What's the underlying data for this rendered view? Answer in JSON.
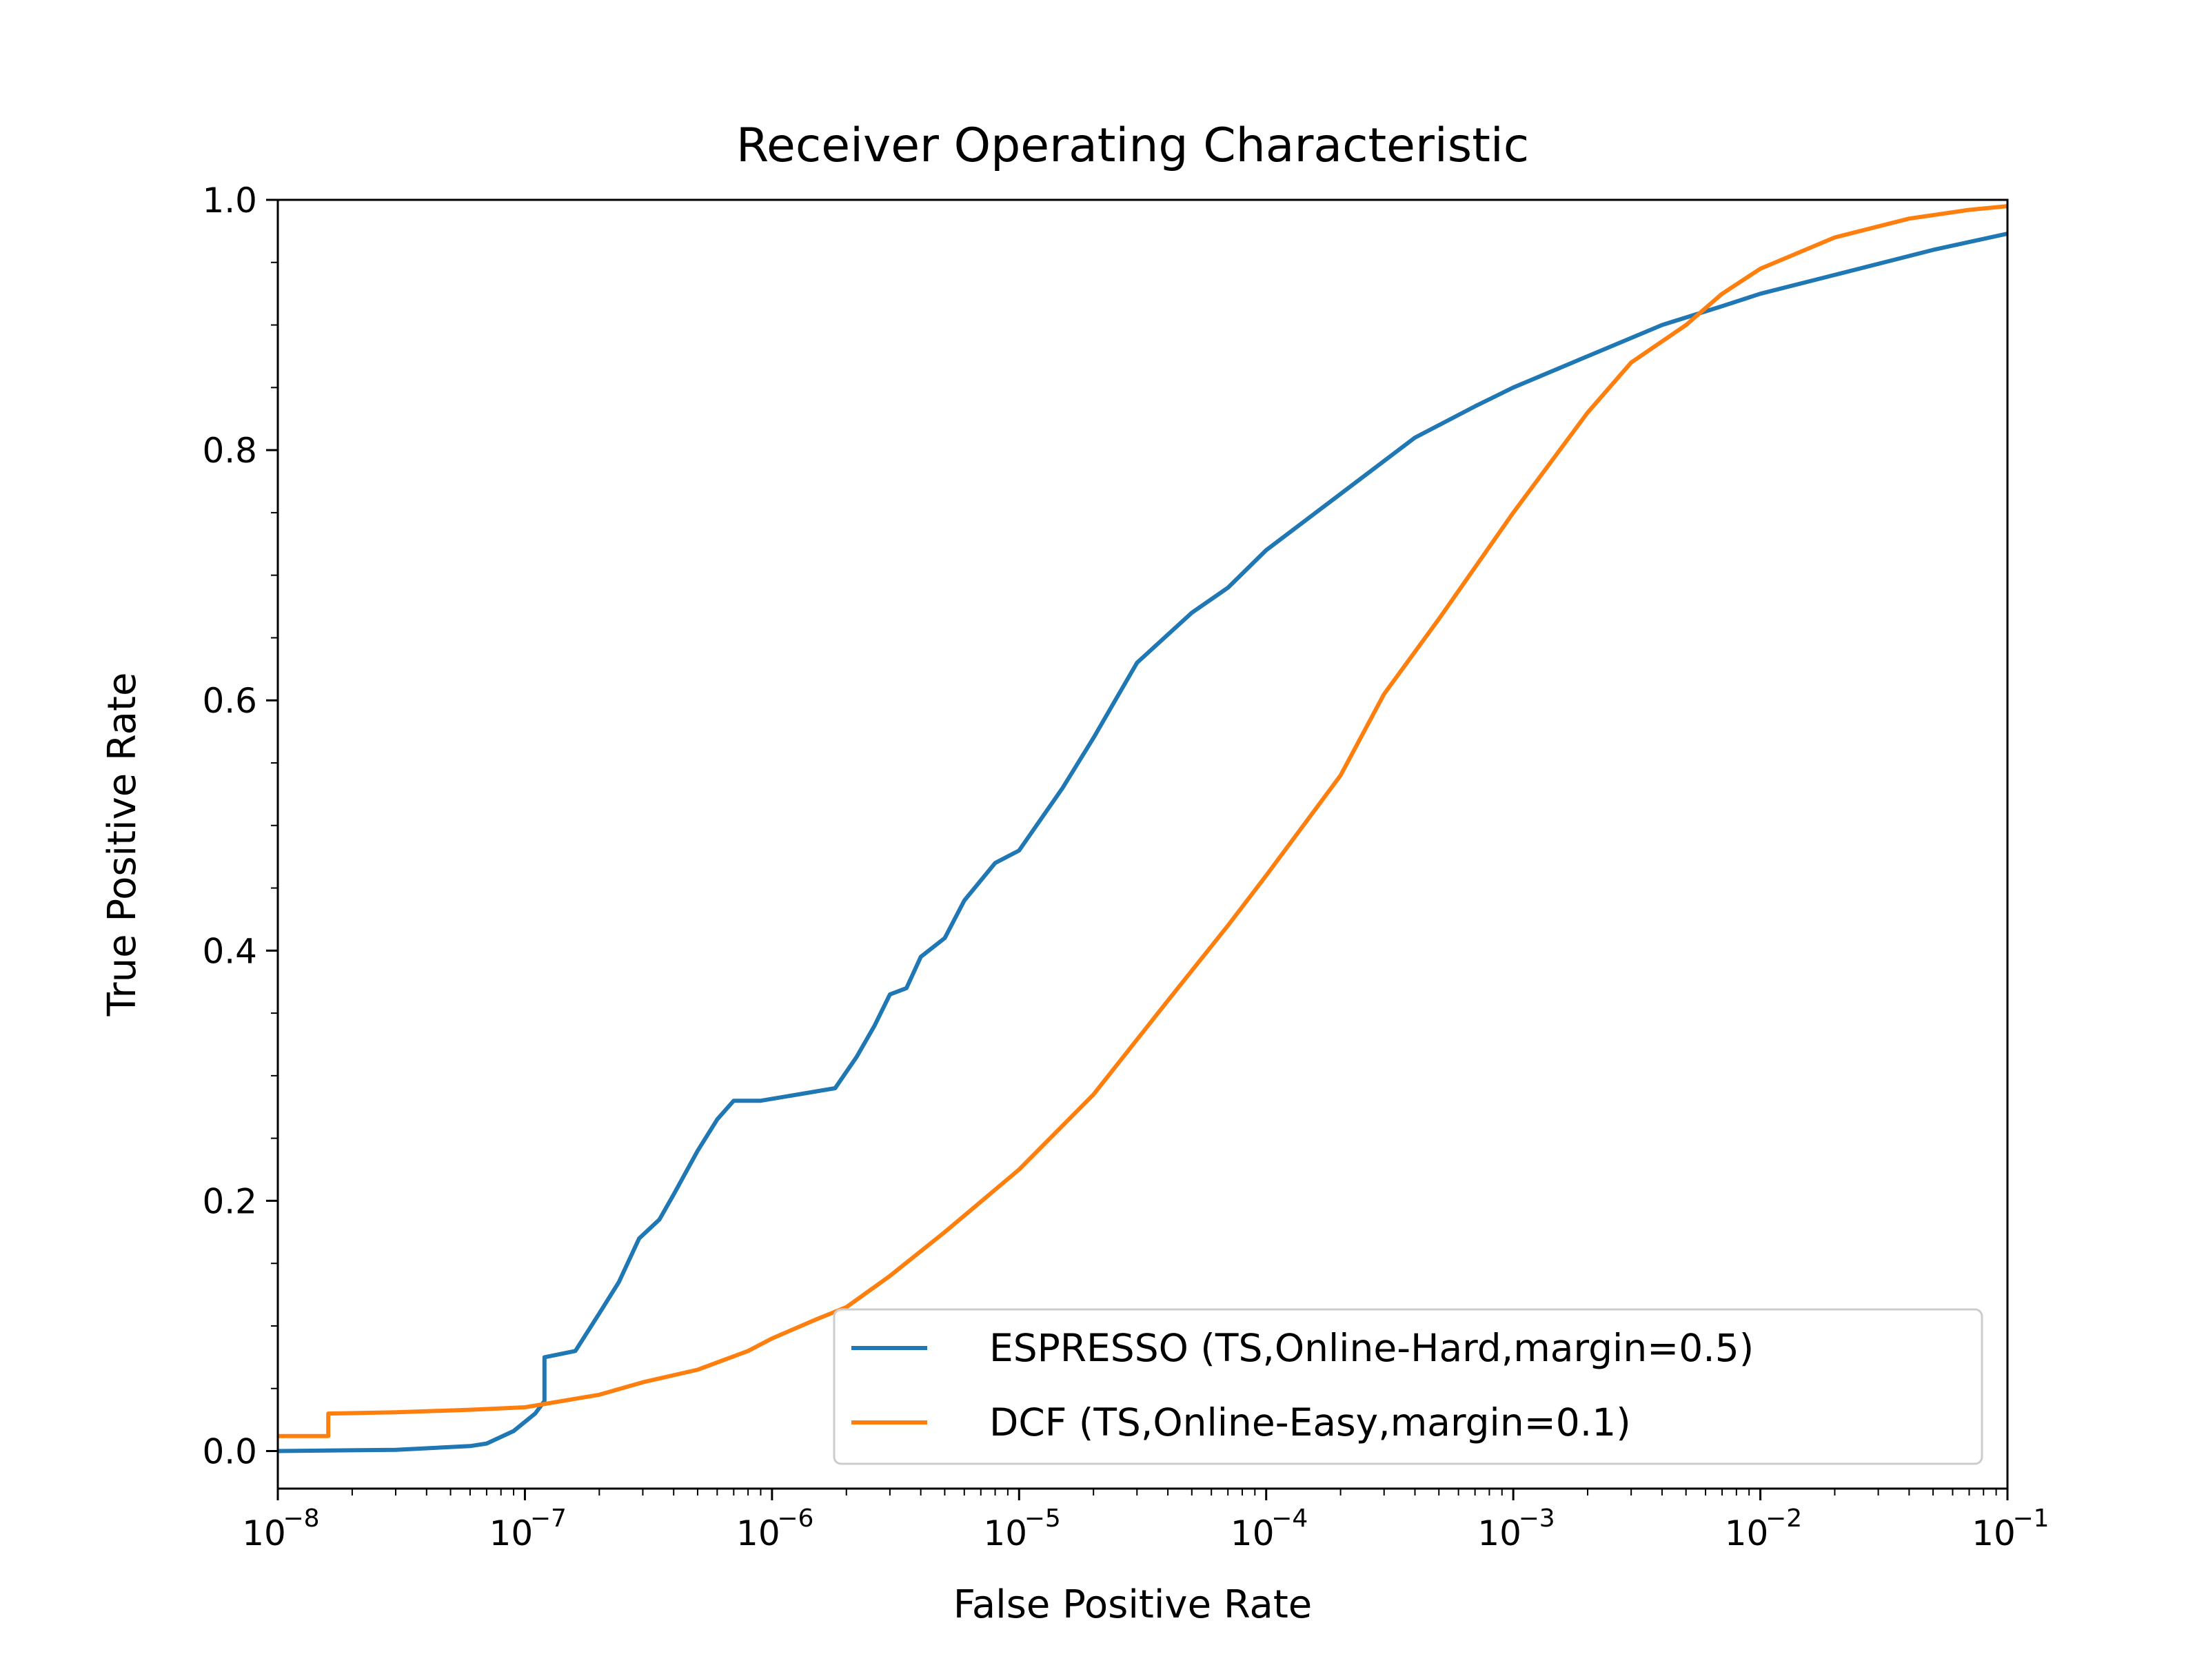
{
  "chart_data": {
    "type": "line",
    "title": "Receiver Operating Characteristic",
    "xlabel": "False Positive Rate",
    "ylabel": "True Positive Rate",
    "xscale": "log",
    "xlim": [
      1e-08,
      0.1
    ],
    "ylim": [
      -0.03,
      1.0
    ],
    "x_ticks": [
      {
        "base": "10",
        "exp": "−8"
      },
      {
        "base": "10",
        "exp": "−7"
      },
      {
        "base": "10",
        "exp": "−6"
      },
      {
        "base": "10",
        "exp": "−5"
      },
      {
        "base": "10",
        "exp": "−4"
      },
      {
        "base": "10",
        "exp": "−3"
      },
      {
        "base": "10",
        "exp": "−2"
      },
      {
        "base": "10",
        "exp": "−1"
      }
    ],
    "y_ticks": [
      "0.0",
      "0.2",
      "0.4",
      "0.6",
      "0.8",
      "1.0"
    ],
    "grid": false,
    "legend_position": "lower-right",
    "series": [
      {
        "name": "ESPRESSO (TS,Online-Hard,margin=0.5)",
        "color": "#1f77b4",
        "x": [
          1e-08,
          3e-08,
          6e-08,
          7e-08,
          9e-08,
          1.1e-07,
          1.2e-07,
          1.2e-07,
          1.6e-07,
          2e-07,
          2.4e-07,
          2.9e-07,
          3.5e-07,
          4e-07,
          5e-07,
          6e-07,
          7e-07,
          8e-07,
          9e-07,
          1.8e-06,
          2.2e-06,
          2.6e-06,
          3e-06,
          3.5e-06,
          4e-06,
          5e-06,
          6e-06,
          8e-06,
          1e-05,
          1.5e-05,
          2e-05,
          3e-05,
          5e-05,
          7e-05,
          0.0001,
          0.0002,
          0.0004,
          0.0007,
          0.001,
          0.002,
          0.004,
          0.007,
          0.01,
          0.02,
          0.05,
          0.1
        ],
        "y": [
          0.0,
          0.001,
          0.004,
          0.006,
          0.016,
          0.03,
          0.04,
          0.075,
          0.08,
          0.11,
          0.135,
          0.17,
          0.185,
          0.205,
          0.24,
          0.265,
          0.28,
          0.28,
          0.28,
          0.29,
          0.315,
          0.34,
          0.365,
          0.37,
          0.395,
          0.41,
          0.44,
          0.47,
          0.48,
          0.53,
          0.57,
          0.63,
          0.67,
          0.69,
          0.72,
          0.765,
          0.81,
          0.835,
          0.85,
          0.875,
          0.9,
          0.915,
          0.925,
          0.94,
          0.96,
          0.973
        ]
      },
      {
        "name": "DCF (TS,Online-Easy,margin=0.1)",
        "color": "#ff7f0e",
        "x": [
          1e-08,
          1.6e-08,
          1.6e-08,
          3e-08,
          6e-08,
          1e-07,
          2e-07,
          3e-07,
          5e-07,
          8e-07,
          1e-06,
          1.5e-06,
          2e-06,
          3e-06,
          5e-06,
          1e-05,
          2e-05,
          4e-05,
          7e-05,
          0.0001,
          0.0002,
          0.0003,
          0.0005,
          0.001,
          0.002,
          0.003,
          0.005,
          0.007,
          0.01,
          0.02,
          0.04,
          0.07,
          0.1
        ],
        "y": [
          0.012,
          0.012,
          0.03,
          0.031,
          0.033,
          0.035,
          0.045,
          0.055,
          0.065,
          0.08,
          0.09,
          0.105,
          0.115,
          0.14,
          0.175,
          0.225,
          0.285,
          0.36,
          0.42,
          0.46,
          0.54,
          0.605,
          0.665,
          0.75,
          0.83,
          0.87,
          0.9,
          0.925,
          0.945,
          0.97,
          0.985,
          0.992,
          0.995
        ]
      }
    ]
  }
}
